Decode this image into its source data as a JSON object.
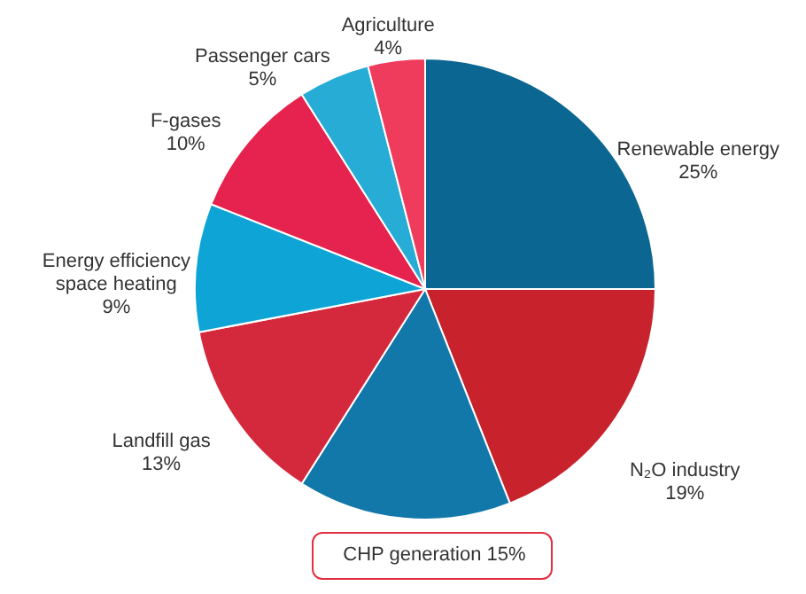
{
  "chart_data": {
    "type": "pie",
    "categories": [
      "Renewable energy",
      "N₂O industry",
      "CHP generation",
      "Landfill gas",
      "Energy efficiency space heating",
      "F-gases",
      "Passenger cars",
      "Agriculture"
    ],
    "values": [
      25,
      19,
      15,
      13,
      9,
      10,
      5,
      4
    ],
    "value_labels": [
      "25%",
      "19%",
      "15%",
      "13%",
      "9%",
      "10%",
      "5%",
      "4%"
    ],
    "colors": [
      "#0b6792",
      "#c8222d",
      "#1277a9",
      "#d4293c",
      "#0ea5d6",
      "#e5234e",
      "#27acd6",
      "#ef3c5d"
    ]
  }
}
